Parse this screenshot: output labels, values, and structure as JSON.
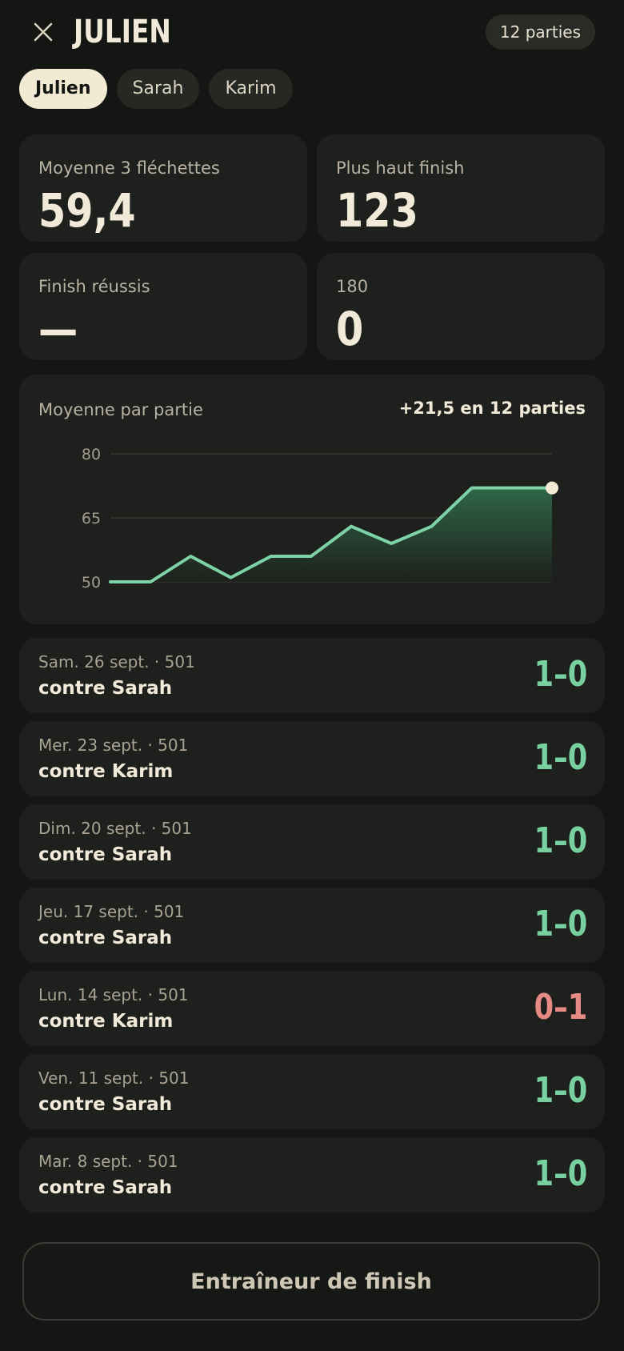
{
  "header": {
    "title": "JULIEN",
    "games_badge": "12 parties"
  },
  "tabs": [
    {
      "label": "Julien",
      "active": true
    },
    {
      "label": "Sarah",
      "active": false
    },
    {
      "label": "Karim",
      "active": false
    }
  ],
  "stats": [
    {
      "label": "Moyenne 3 fléchettes",
      "value": "59,4"
    },
    {
      "label": "Plus haut finish",
      "value": "123"
    },
    {
      "label": "Finish réussis",
      "value": "—"
    },
    {
      "label": "180",
      "value": "0"
    }
  ],
  "chart_data": {
    "type": "area",
    "title": "Moyenne par partie",
    "annotation": "+21,5 en 12 parties",
    "x": [
      1,
      2,
      3,
      4,
      5,
      6,
      7,
      8,
      9,
      10,
      11,
      12
    ],
    "series": [
      {
        "values": [
          50,
          50,
          56,
          51,
          56,
          56,
          63,
          59,
          63,
          72,
          72,
          72
        ]
      }
    ],
    "ylim": [
      50,
      80
    ],
    "yticks": [
      80,
      65,
      50
    ],
    "grid": true,
    "line_color": "#7ed3a6"
  },
  "matches": [
    {
      "date": "Sam. 26 sept. · 501",
      "opponent": "contre Sarah",
      "score": "1–0",
      "result": "win"
    },
    {
      "date": "Mer. 23 sept. · 501",
      "opponent": "contre Karim",
      "score": "1–0",
      "result": "win"
    },
    {
      "date": "Dim. 20 sept. · 501",
      "opponent": "contre Sarah",
      "score": "1–0",
      "result": "win"
    },
    {
      "date": "Jeu. 17 sept. · 501",
      "opponent": "contre Sarah",
      "score": "1–0",
      "result": "win"
    },
    {
      "date": "Lun. 14 sept. · 501",
      "opponent": "contre Karim",
      "score": "0–1",
      "result": "loss"
    },
    {
      "date": "Ven. 11 sept. · 501",
      "opponent": "contre Sarah",
      "score": "1–0",
      "result": "win"
    },
    {
      "date": "Mar. 8 sept. · 501",
      "opponent": "contre Sarah",
      "score": "1–0",
      "result": "win"
    }
  ],
  "trainer_button": {
    "label": "Entraîneur de finish"
  },
  "colors": {
    "background": "#141613",
    "card": "#1e201d",
    "win": "#78cfa0",
    "loss": "#e58b84",
    "cream": "#f2ead8"
  }
}
